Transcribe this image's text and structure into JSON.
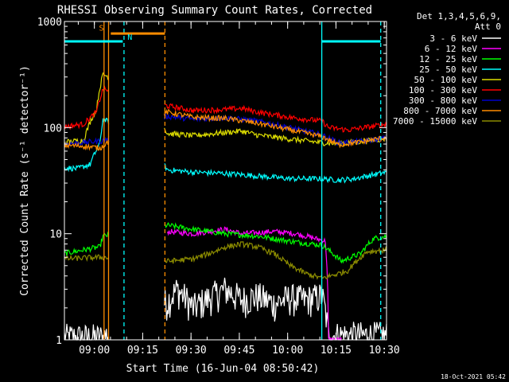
{
  "chart_data": {
    "type": "line",
    "title": "RHESSI Observing Summary Count Rates, Corrected",
    "xlabel": "Start Time (16-Jun-04 08:50:42)",
    "ylabel": "Corrected Count Rate (s⁻¹ detector⁻¹)",
    "y_scale": "log",
    "ylim": [
      1,
      1000
    ],
    "x_units": "minutes since 08:50:42",
    "xlim": [
      0,
      100
    ],
    "x_ticks": [
      {
        "label": "09:00",
        "value": 9.3
      },
      {
        "label": "09:15",
        "value": 24.3
      },
      {
        "label": "09:30",
        "value": 39.3
      },
      {
        "label": "09:45",
        "value": 54.3
      },
      {
        "label": "10:00",
        "value": 69.3
      },
      {
        "label": "10:15",
        "value": 84.3
      },
      {
        "label": "10:30",
        "value": 99.3
      }
    ],
    "y_ticks": [
      {
        "label": "1",
        "value": 1
      },
      {
        "label": "10",
        "value": 10
      },
      {
        "label": "100",
        "value": 100
      },
      {
        "label": "1000",
        "value": 1000
      }
    ],
    "legend": {
      "position": "right",
      "header": [
        "Det 1,3,4,5,6,9,",
        "Att 0"
      ],
      "entries": [
        {
          "label": "3 - 6 keV",
          "color": "#000000"
        },
        {
          "label": "6 - 12 keV",
          "color": "#ff00ff"
        },
        {
          "label": "12 - 25 keV",
          "color": "#00ff00"
        },
        {
          "label": "25 - 50 keV",
          "color": "#00ffff"
        },
        {
          "label": "50 - 100 keV",
          "color": "#dddd00"
        },
        {
          "label": "100 - 300 keV",
          "color": "#ff0000"
        },
        {
          "label": "300 - 800 keV",
          "color": "#0000cc"
        },
        {
          "label": "800 - 7000 keV",
          "color": "#ff8c00"
        },
        {
          "label": "7000 - 15000 keV",
          "color": "#8b8b00"
        }
      ]
    },
    "series": [
      {
        "name": "3 - 6 keV",
        "color": "#000000",
        "points": [
          [
            0,
            1.05
          ],
          [
            12,
            1.05
          ],
          [
            32,
            2.3
          ],
          [
            35,
            3.0
          ],
          [
            40,
            2.0
          ],
          [
            45,
            2.5
          ],
          [
            50,
            3.0
          ],
          [
            55,
            2.4
          ],
          [
            60,
            2.6
          ],
          [
            65,
            2.2
          ],
          [
            70,
            2.5
          ],
          [
            75,
            2.4
          ],
          [
            80,
            2.6
          ],
          [
            82,
            1.1
          ],
          [
            100,
            1.1
          ]
        ]
      },
      {
        "name": "6 - 12 keV",
        "color": "#ff00ff",
        "points": [
          [
            32,
            10.5
          ],
          [
            40,
            10.0
          ],
          [
            50,
            11.0
          ],
          [
            55,
            10.0
          ],
          [
            65,
            10.5
          ],
          [
            72,
            10.0
          ],
          [
            78,
            9.0
          ],
          [
            81,
            8.5
          ],
          [
            82,
            1.0
          ],
          [
            86,
            1.0
          ]
        ]
      },
      {
        "name": "12 - 25 keV",
        "color": "#00ff00",
        "points": [
          [
            0,
            6.5
          ],
          [
            11,
            7.5
          ],
          [
            12,
            9.5
          ],
          [
            32,
            12.0
          ],
          [
            40,
            11.0
          ],
          [
            50,
            10.0
          ],
          [
            60,
            9.5
          ],
          [
            70,
            8.5
          ],
          [
            80,
            7.8
          ],
          [
            82,
            7.0
          ],
          [
            86,
            5.5
          ],
          [
            92,
            6.5
          ],
          [
            96,
            9.0
          ],
          [
            100,
            9.5
          ]
        ]
      },
      {
        "name": "25 - 50 keV",
        "color": "#00ffff",
        "points": [
          [
            0,
            42
          ],
          [
            4,
            41
          ],
          [
            8,
            45
          ],
          [
            11,
            70
          ],
          [
            12,
            120
          ],
          [
            32,
            40
          ],
          [
            40,
            38
          ],
          [
            50,
            37
          ],
          [
            60,
            35
          ],
          [
            70,
            33
          ],
          [
            80,
            33
          ],
          [
            85,
            32
          ],
          [
            90,
            33
          ],
          [
            96,
            36
          ],
          [
            100,
            38
          ]
        ]
      },
      {
        "name": "50 - 100 keV",
        "color": "#dddd00",
        "points": [
          [
            0,
            73
          ],
          [
            6,
            76
          ],
          [
            10,
            150
          ],
          [
            12,
            320
          ],
          [
            32,
            88
          ],
          [
            40,
            84
          ],
          [
            50,
            90
          ],
          [
            55,
            93
          ],
          [
            60,
            85
          ],
          [
            70,
            78
          ],
          [
            80,
            72
          ],
          [
            85,
            71
          ],
          [
            90,
            73
          ],
          [
            96,
            76
          ],
          [
            100,
            79
          ]
        ]
      },
      {
        "name": "100 - 300 keV",
        "color": "#ff0000",
        "points": [
          [
            0,
            102
          ],
          [
            6,
            108
          ],
          [
            10,
            140
          ],
          [
            12,
            230
          ],
          [
            32,
            160
          ],
          [
            40,
            145
          ],
          [
            50,
            148
          ],
          [
            55,
            152
          ],
          [
            60,
            140
          ],
          [
            70,
            125
          ],
          [
            80,
            115
          ],
          [
            82,
            100
          ],
          [
            88,
            95
          ],
          [
            96,
            103
          ],
          [
            100,
            108
          ]
        ]
      },
      {
        "name": "300 - 800 keV",
        "color": "#0000cc",
        "points": [
          [
            0,
            70
          ],
          [
            12,
            75
          ],
          [
            32,
            128
          ],
          [
            40,
            120
          ],
          [
            50,
            124
          ],
          [
            60,
            115
          ],
          [
            70,
            100
          ],
          [
            80,
            85
          ],
          [
            85,
            72
          ],
          [
            92,
            74
          ],
          [
            100,
            80
          ]
        ]
      },
      {
        "name": "800 - 7000 keV",
        "color": "#ff8c00",
        "points": [
          [
            0,
            68
          ],
          [
            6,
            67
          ],
          [
            11,
            64
          ],
          [
            32,
            140
          ],
          [
            40,
            125
          ],
          [
            50,
            122
          ],
          [
            60,
            110
          ],
          [
            70,
            95
          ],
          [
            80,
            82
          ],
          [
            85,
            69
          ],
          [
            92,
            73
          ],
          [
            100,
            81
          ]
        ]
      },
      {
        "name": "7000 - 15000 keV",
        "color": "#8b8b00",
        "points": [
          [
            0,
            5.8
          ],
          [
            11,
            6.0
          ],
          [
            32,
            5.5
          ],
          [
            40,
            5.8
          ],
          [
            45,
            6.5
          ],
          [
            50,
            7.5
          ],
          [
            55,
            8.0
          ],
          [
            60,
            7.5
          ],
          [
            65,
            6.5
          ],
          [
            70,
            5.0
          ],
          [
            75,
            4.2
          ],
          [
            80,
            3.8
          ],
          [
            85,
            4.2
          ],
          [
            88,
            4.5
          ],
          [
            94,
            6.8
          ],
          [
            100,
            7.0
          ]
        ]
      }
    ],
    "vlines": [
      {
        "x": 12.3,
        "style": "solid",
        "color": "#ff8c00"
      },
      {
        "x": 13.7,
        "style": "solid",
        "color": "#ff8c00"
      },
      {
        "x": 18.5,
        "style": "dashed",
        "color": "#00ffff"
      },
      {
        "x": 31.2,
        "style": "dashed",
        "color": "#ff8c00"
      },
      {
        "x": 79.9,
        "style": "solid",
        "color": "#00ffff"
      },
      {
        "x": 98.2,
        "style": "dashed",
        "color": "#00ffff"
      }
    ],
    "flag_bars": [
      {
        "from": 0,
        "to": 18.1,
        "y": 650,
        "color": "#00ffff"
      },
      {
        "from": 14.4,
        "to": 31.2,
        "y": 770,
        "color": "#ff8c00"
      },
      {
        "from": 79.9,
        "to": 98.2,
        "y": 650,
        "color": "#00ffff"
      }
    ],
    "annotations": [
      {
        "text": "S",
        "x": 11.5,
        "y": 820,
        "color": "#ff8c00"
      },
      {
        "text": "N",
        "x": 20.3,
        "y": 670,
        "color": "#00ffff"
      }
    ]
  },
  "footer": {
    "timestamp": "18-Oct-2021 05:42"
  }
}
